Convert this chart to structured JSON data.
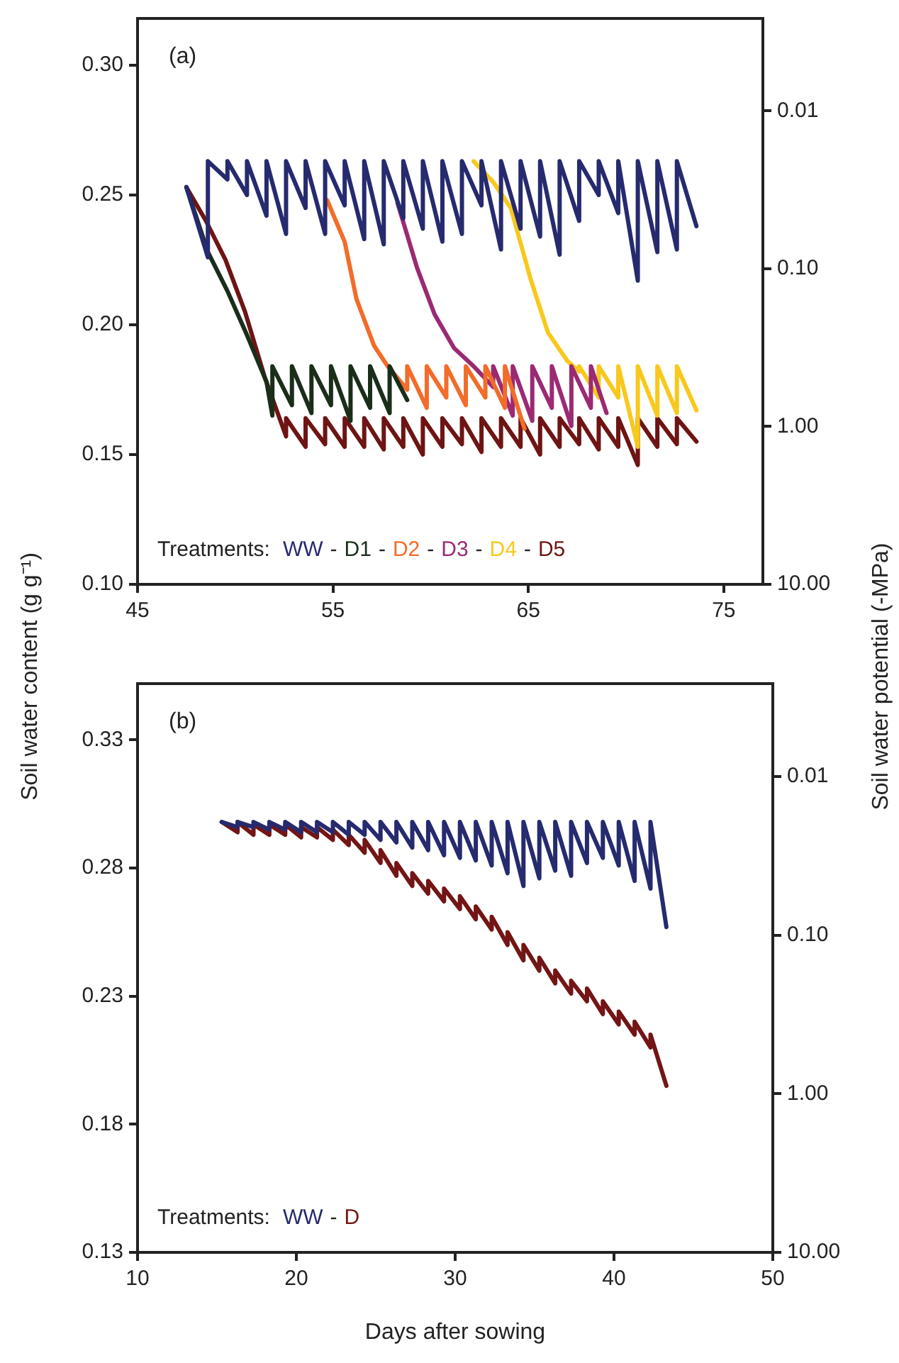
{
  "chart_data": [
    {
      "type": "line",
      "title": "(a)",
      "annotations": [
        "-",
        "-",
        "-",
        "-",
        "-"
      ],
      "ylabel": "Soil water content (g g⁻¹)",
      "y2label": "Soil water potential (-MPa)",
      "legend_title": "Treatments:",
      "legend": "bottom left",
      "marker": "none",
      "log": "y2",
      "xlim": [
        45,
        77
      ],
      "xticks": [
        45,
        55,
        65,
        75
      ],
      "ylim": [
        0.1,
        0.318
      ],
      "yticks": [
        {
          "value": 0.1,
          "label": "0.10"
        },
        {
          "value": 0.15,
          "label": "0.15"
        },
        {
          "value": 0.2,
          "label": "0.20"
        },
        {
          "value": 0.25,
          "label": "0.25"
        },
        {
          "value": 0.3,
          "label": "0.30"
        }
      ],
      "y2lim": [
        10,
        0.0026
      ],
      "y2ticks": [
        {
          "value": 10,
          "label": "10.00"
        },
        {
          "value": 1,
          "label": "1.00"
        },
        {
          "value": 0.1,
          "label": "0.10"
        },
        {
          "value": 0.01,
          "label": "0.01"
        }
      ],
      "series": [
        {
          "name": "WW",
          "color": "#262a6e",
          "x": [
            47.5,
            48.6,
            48.6,
            49.6,
            49.6,
            50.6,
            50.6,
            51.6,
            51.6,
            52.6,
            52.6,
            53.6,
            53.6,
            54.6,
            54.6,
            55.6,
            55.6,
            56.6,
            56.6,
            57.6,
            57.6,
            58.6,
            58.6,
            59.6,
            59.6,
            60.6,
            60.6,
            61.6,
            61.6,
            62.6,
            62.6,
            63.6,
            63.6,
            64.6,
            64.6,
            65.6,
            65.6,
            66.6,
            66.6,
            67.6,
            67.6,
            68.6,
            68.6,
            69.6,
            69.6,
            70.6,
            70.6,
            71.6,
            71.6,
            72.6,
            72.6,
            73.6
          ],
          "values": [
            0.253,
            0.226,
            0.263,
            0.256,
            0.263,
            0.25,
            0.263,
            0.242,
            0.263,
            0.235,
            0.263,
            0.245,
            0.263,
            0.235,
            0.263,
            0.246,
            0.263,
            0.233,
            0.263,
            0.231,
            0.263,
            0.241,
            0.263,
            0.237,
            0.263,
            0.232,
            0.263,
            0.235,
            0.263,
            0.246,
            0.263,
            0.229,
            0.263,
            0.237,
            0.263,
            0.234,
            0.263,
            0.227,
            0.263,
            0.24,
            0.263,
            0.25,
            0.263,
            0.243,
            0.263,
            0.217,
            0.263,
            0.228,
            0.263,
            0.229,
            0.263,
            0.238
          ]
        },
        {
          "name": "D1",
          "color": "#1a2e1a",
          "x": [
            47.5,
            48.6,
            49.6,
            50.6,
            51.6,
            51.9,
            51.9,
            52.9,
            52.9,
            53.9,
            53.9,
            54.9,
            54.9,
            55.9,
            55.9,
            56.9,
            56.9,
            57.9,
            57.9,
            58.8
          ],
          "values": [
            0.253,
            0.228,
            0.213,
            0.196,
            0.178,
            0.165,
            0.184,
            0.169,
            0.184,
            0.166,
            0.184,
            0.169,
            0.184,
            0.163,
            0.184,
            0.168,
            0.184,
            0.166,
            0.184,
            0.171
          ]
        },
        {
          "name": "D2",
          "color": "#f26c2a",
          "x": [
            54.7,
            55.6,
            56.2,
            57.1,
            57.8,
            58.8,
            58.8,
            59.8,
            59.8,
            60.8,
            60.8,
            61.8,
            61.8,
            62.8,
            62.8,
            63.8,
            63.8,
            64.8
          ],
          "values": [
            0.248,
            0.232,
            0.21,
            0.192,
            0.184,
            0.175,
            0.184,
            0.168,
            0.184,
            0.172,
            0.184,
            0.169,
            0.184,
            0.172,
            0.184,
            0.168,
            0.184,
            0.16
          ]
        },
        {
          "name": "D3",
          "color": "#9b2a73",
          "x": [
            58.3,
            59.3,
            60.2,
            61.2,
            62.2,
            63.2,
            63.2,
            64.2,
            64.2,
            65.2,
            65.2,
            66.2,
            66.2,
            67.2,
            67.2,
            68.2,
            68.2,
            69.0
          ],
          "values": [
            0.247,
            0.222,
            0.204,
            0.191,
            0.184,
            0.176,
            0.184,
            0.165,
            0.184,
            0.163,
            0.184,
            0.168,
            0.184,
            0.161,
            0.184,
            0.168,
            0.184,
            0.166
          ]
        },
        {
          "name": "D4",
          "color": "#f8c81c",
          "x": [
            62.2,
            63.2,
            64.1,
            65.1,
            66.0,
            67.0,
            67.6,
            67.6,
            68.6,
            68.6,
            69.6,
            69.6,
            70.6,
            70.6,
            71.6,
            71.6,
            72.6,
            72.6,
            73.6
          ],
          "values": [
            0.263,
            0.255,
            0.245,
            0.218,
            0.197,
            0.186,
            0.182,
            0.184,
            0.172,
            0.184,
            0.172,
            0.184,
            0.153,
            0.184,
            0.165,
            0.184,
            0.166,
            0.184,
            0.167
          ]
        },
        {
          "name": "D5",
          "color": "#6e1414",
          "x": [
            47.5,
            48.5,
            49.5,
            50.5,
            51.5,
            52.6,
            52.6,
            53.6,
            53.6,
            54.6,
            54.6,
            55.6,
            55.6,
            56.6,
            56.6,
            57.6,
            57.6,
            58.6,
            58.6,
            59.6,
            59.6,
            60.6,
            60.6,
            61.6,
            61.6,
            62.6,
            62.6,
            63.6,
            63.6,
            64.6,
            64.6,
            65.6,
            65.6,
            66.6,
            66.6,
            67.6,
            67.6,
            68.6,
            68.6,
            69.6,
            69.6,
            70.6,
            70.6,
            71.6,
            71.6,
            72.6,
            72.6,
            73.6
          ],
          "values": [
            0.253,
            0.24,
            0.225,
            0.205,
            0.18,
            0.157,
            0.164,
            0.153,
            0.164,
            0.154,
            0.164,
            0.153,
            0.164,
            0.153,
            0.164,
            0.152,
            0.164,
            0.153,
            0.164,
            0.15,
            0.164,
            0.153,
            0.164,
            0.154,
            0.164,
            0.151,
            0.164,
            0.153,
            0.164,
            0.153,
            0.164,
            0.15,
            0.164,
            0.153,
            0.164,
            0.154,
            0.164,
            0.152,
            0.164,
            0.153,
            0.164,
            0.146,
            0.164,
            0.153,
            0.164,
            0.154,
            0.164,
            0.155
          ]
        }
      ]
    },
    {
      "type": "line",
      "title": "(b)",
      "annotations": [
        "-"
      ],
      "xlabel": "Days after sowing",
      "legend_title": "Treatments:",
      "legend": "bottom left",
      "marker": "none",
      "log": "y2",
      "xlim": [
        10,
        50
      ],
      "xticks": [
        10,
        20,
        30,
        40,
        50
      ],
      "ylim": [
        0.13,
        0.352
      ],
      "yticks": [
        0.13,
        0.18,
        0.23,
        0.28,
        0.33
      ],
      "y2lim": [
        10,
        0.0026
      ],
      "y2ticks": [
        {
          "value": 10,
          "label": "10.00"
        },
        {
          "value": 1,
          "label": "1.00"
        },
        {
          "value": 0.1,
          "label": "0.10"
        },
        {
          "value": 0.01,
          "label": "0.01"
        }
      ],
      "series": [
        {
          "name": "WW",
          "color": "#262a6e",
          "x": [
            15.3,
            16.3,
            16.3,
            17.3,
            17.3,
            18.3,
            18.3,
            19.3,
            19.3,
            20.3,
            20.3,
            21.3,
            21.3,
            22.3,
            22.3,
            23.3,
            23.3,
            24.3,
            24.3,
            25.3,
            25.3,
            26.3,
            26.3,
            27.3,
            27.3,
            28.3,
            28.3,
            29.3,
            29.3,
            30.3,
            30.3,
            31.3,
            31.3,
            32.3,
            32.3,
            33.3,
            33.3,
            34.3,
            34.3,
            35.3,
            35.3,
            36.3,
            36.3,
            37.3,
            37.3,
            38.3,
            38.3,
            39.3,
            39.3,
            40.3,
            40.3,
            41.3,
            41.3,
            42.3,
            42.3,
            43.3
          ],
          "values": [
            0.298,
            0.296,
            0.298,
            0.296,
            0.298,
            0.295,
            0.298,
            0.295,
            0.298,
            0.294,
            0.298,
            0.294,
            0.298,
            0.294,
            0.298,
            0.293,
            0.298,
            0.293,
            0.298,
            0.291,
            0.298,
            0.29,
            0.298,
            0.288,
            0.298,
            0.287,
            0.298,
            0.285,
            0.298,
            0.284,
            0.298,
            0.283,
            0.298,
            0.281,
            0.298,
            0.278,
            0.298,
            0.273,
            0.298,
            0.276,
            0.298,
            0.279,
            0.298,
            0.277,
            0.298,
            0.282,
            0.298,
            0.284,
            0.298,
            0.281,
            0.298,
            0.275,
            0.298,
            0.272,
            0.298,
            0.257
          ]
        },
        {
          "name": "D",
          "color": "#731515",
          "x": [
            15.3,
            16.3,
            16.3,
            17.3,
            17.3,
            18.3,
            18.3,
            19.3,
            19.3,
            20.3,
            20.3,
            21.3,
            21.3,
            22.3,
            22.3,
            23.3,
            23.3,
            24.3,
            24.3,
            25.3,
            25.3,
            26.3,
            26.3,
            27.3,
            27.3,
            28.3,
            28.3,
            29.3,
            29.3,
            30.3,
            30.3,
            31.3,
            31.3,
            32.3,
            32.3,
            33.3,
            33.3,
            34.3,
            34.3,
            35.3,
            35.3,
            36.3,
            36.3,
            37.3,
            37.3,
            38.3,
            38.3,
            39.3,
            39.3,
            40.3,
            40.3,
            41.3,
            41.3,
            42.3,
            42.3,
            43.3
          ],
          "values": [
            0.298,
            0.294,
            0.298,
            0.293,
            0.297,
            0.293,
            0.297,
            0.293,
            0.297,
            0.292,
            0.296,
            0.292,
            0.296,
            0.291,
            0.295,
            0.289,
            0.293,
            0.286,
            0.291,
            0.282,
            0.287,
            0.277,
            0.282,
            0.273,
            0.278,
            0.27,
            0.275,
            0.267,
            0.272,
            0.264,
            0.269,
            0.26,
            0.265,
            0.256,
            0.261,
            0.25,
            0.255,
            0.244,
            0.25,
            0.24,
            0.245,
            0.235,
            0.24,
            0.231,
            0.236,
            0.228,
            0.233,
            0.223,
            0.228,
            0.219,
            0.224,
            0.215,
            0.22,
            0.21,
            0.215,
            0.195
          ]
        }
      ]
    }
  ]
}
